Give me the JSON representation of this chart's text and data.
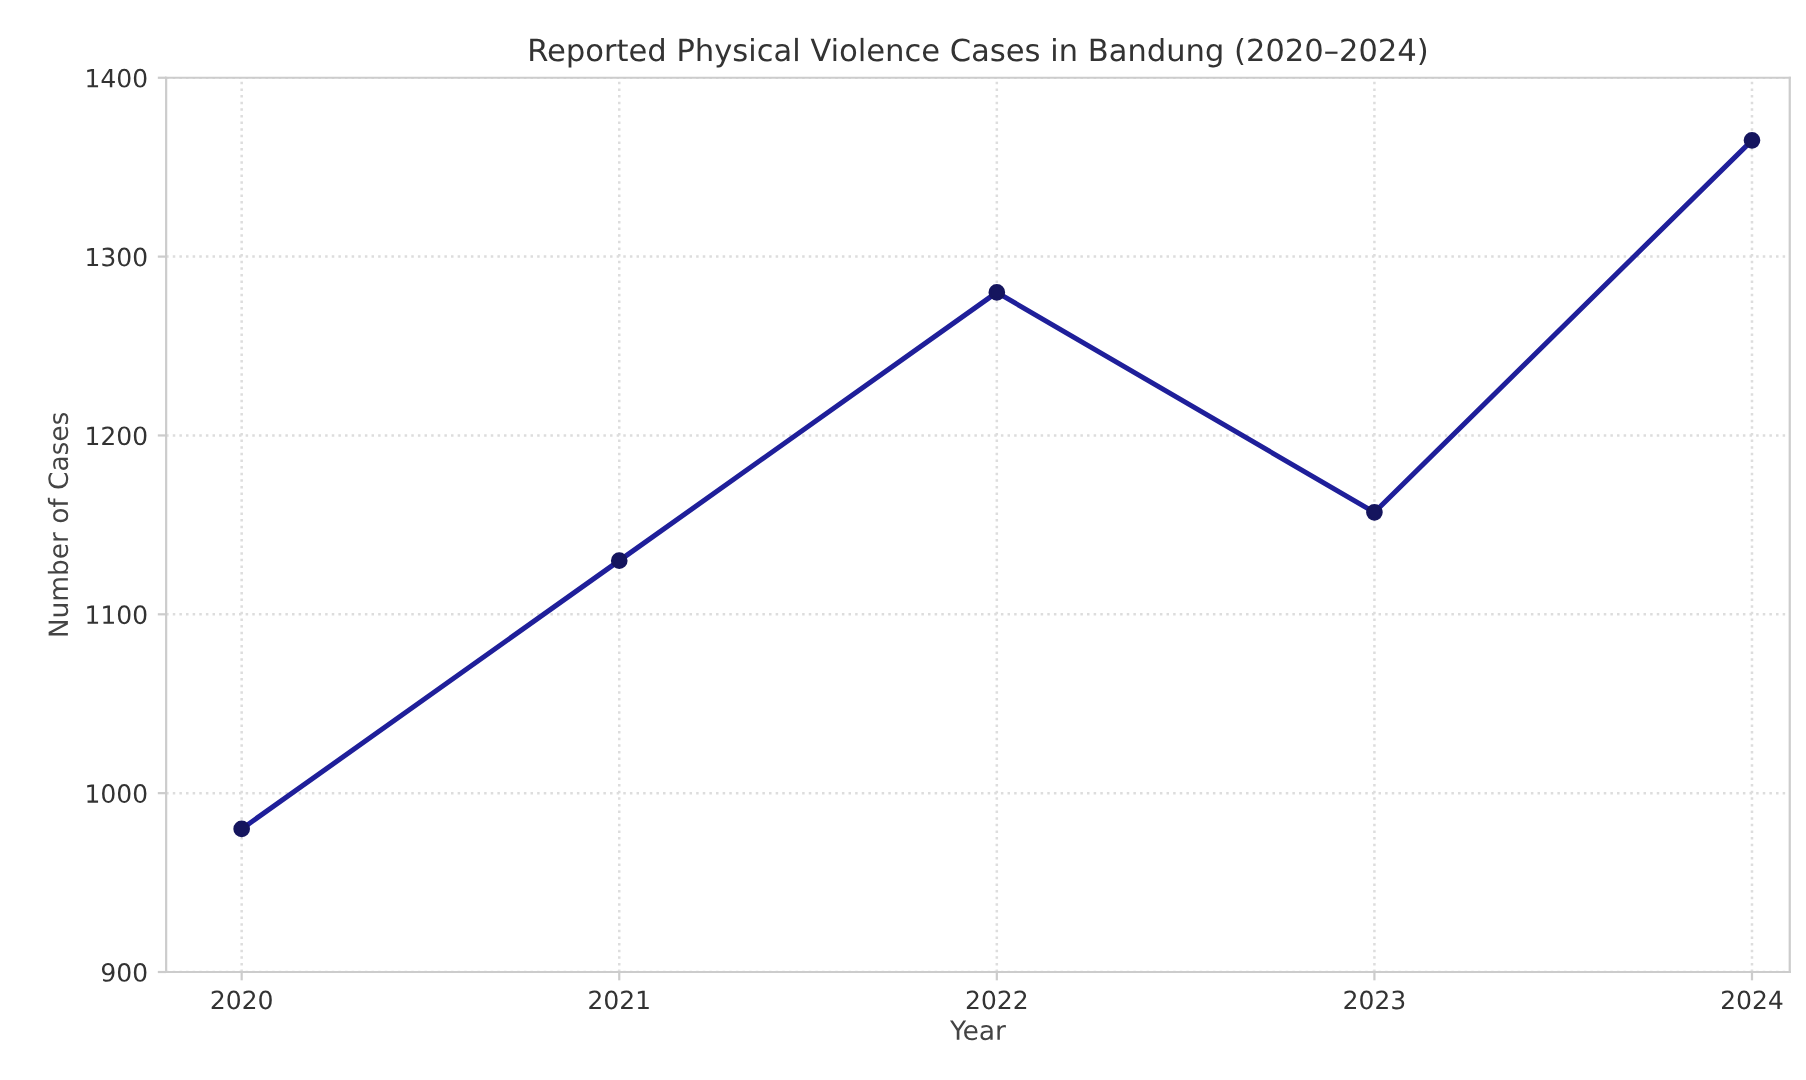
{
  "chart_data": {
    "type": "line",
    "title": "Reported Physical Violence Cases in Bandung (2020–2024)",
    "xlabel": "Year",
    "ylabel": "Number of Cases",
    "x": [
      2020,
      2021,
      2022,
      2023,
      2024
    ],
    "series": [
      {
        "color": "#1f1f9a",
        "values": [
          980,
          1130,
          1280,
          1157,
          1365
        ]
      }
    ],
    "xlim": [
      2019.8,
      2024.1
    ],
    "xticks": [
      2020,
      2021,
      2022,
      2023,
      2024
    ],
    "ylim": [
      900,
      1400
    ],
    "yticks": [
      900,
      1000,
      1100,
      1200,
      1300,
      1400
    ],
    "grid": true,
    "marker": "circle",
    "line_style": "solid"
  }
}
